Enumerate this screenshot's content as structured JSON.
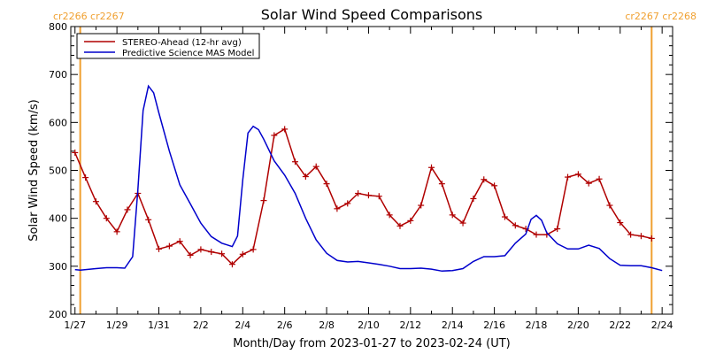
{
  "chart_data": {
    "type": "line",
    "title": "Solar Wind Speed Comparisons",
    "xlabel": "Month/Day from 2023-01-27 to 2023-02-24 (UT)",
    "ylabel": "Solar Wind Speed (km/s)",
    "ylim": [
      200,
      800
    ],
    "xlim": [
      "2023-01-27",
      "2023-02-24"
    ],
    "x_ticks": [
      "1/27",
      "1/29",
      "1/31",
      "2/2",
      "2/4",
      "2/6",
      "2/8",
      "2/10",
      "2/12",
      "2/14",
      "2/16",
      "2/18",
      "2/20",
      "2/22",
      "2/24"
    ],
    "y_ticks": [
      200,
      300,
      400,
      500,
      600,
      700,
      800
    ],
    "grid": false,
    "legend_position": "top-left",
    "series": [
      {
        "name": "STEREO-Ahead (12-hr avg)",
        "color": "#b00000",
        "marker": "plus",
        "points": [
          [
            "2023-01-27T00:00",
            537
          ],
          [
            "2023-01-27T12:00",
            485
          ],
          [
            "2023-01-28T00:00",
            435
          ],
          [
            "2023-01-28T12:00",
            400
          ],
          [
            "2023-01-29T00:00",
            372
          ],
          [
            "2023-01-29T12:00",
            418
          ],
          [
            "2023-01-30T00:00",
            452
          ],
          [
            "2023-01-30T12:00",
            397
          ],
          [
            "2023-01-31T00:00",
            336
          ],
          [
            "2023-01-31T12:00",
            342
          ],
          [
            "2023-02-01T00:00",
            352
          ],
          [
            "2023-02-01T12:00",
            323
          ],
          [
            "2023-02-02T00:00",
            335
          ],
          [
            "2023-02-02T12:00",
            330
          ],
          [
            "2023-02-03T00:00",
            326
          ],
          [
            "2023-02-03T12:00",
            304
          ],
          [
            "2023-02-04T00:00",
            325
          ],
          [
            "2023-02-04T12:00",
            335
          ],
          [
            "2023-02-05T00:00",
            437
          ],
          [
            "2023-02-05T12:00",
            573
          ],
          [
            "2023-02-06T00:00",
            586
          ],
          [
            "2023-02-06T12:00",
            518
          ],
          [
            "2023-02-07T00:00",
            487
          ],
          [
            "2023-02-07T12:00",
            508
          ],
          [
            "2023-02-08T00:00",
            472
          ],
          [
            "2023-02-08T12:00",
            420
          ],
          [
            "2023-02-09T00:00",
            431
          ],
          [
            "2023-02-09T12:00",
            452
          ],
          [
            "2023-02-10T00:00",
            448
          ],
          [
            "2023-02-10T12:00",
            446
          ],
          [
            "2023-02-11T00:00",
            407
          ],
          [
            "2023-02-11T12:00",
            384
          ],
          [
            "2023-02-12T00:00",
            395
          ],
          [
            "2023-02-12T12:00",
            427
          ],
          [
            "2023-02-13T00:00",
            506
          ],
          [
            "2023-02-13T12:00",
            472
          ],
          [
            "2023-02-14T00:00",
            407
          ],
          [
            "2023-02-14T12:00",
            390
          ],
          [
            "2023-02-15T00:00",
            441
          ],
          [
            "2023-02-15T12:00",
            481
          ],
          [
            "2023-02-16T00:00",
            468
          ],
          [
            "2023-02-16T12:00",
            403
          ],
          [
            "2023-02-17T00:00",
            385
          ],
          [
            "2023-02-17T12:00",
            378
          ],
          [
            "2023-02-18T00:00",
            366
          ],
          [
            "2023-02-18T12:00",
            366
          ],
          [
            "2023-02-19T00:00",
            378
          ],
          [
            "2023-02-19T12:00",
            486
          ],
          [
            "2023-02-20T00:00",
            492
          ],
          [
            "2023-02-20T12:00",
            473
          ],
          [
            "2023-02-21T00:00",
            482
          ],
          [
            "2023-02-21T12:00",
            427
          ],
          [
            "2023-02-22T00:00",
            391
          ],
          [
            "2023-02-22T12:00",
            366
          ],
          [
            "2023-02-23T00:00",
            363
          ],
          [
            "2023-02-23T12:00",
            358
          ]
        ]
      },
      {
        "name": "Predictive Science MAS Model",
        "color": "#0000cc",
        "marker": "none",
        "points": [
          [
            "2023-01-27T00:00",
            293
          ],
          [
            "2023-01-27T06:00",
            292
          ],
          [
            "2023-01-28T00:00",
            295
          ],
          [
            "2023-01-28T12:00",
            297
          ],
          [
            "2023-01-29T00:00",
            297
          ],
          [
            "2023-01-29T09:00",
            296
          ],
          [
            "2023-01-29T18:00",
            320
          ],
          [
            "2023-01-30T00:00",
            460
          ],
          [
            "2023-01-30T06:00",
            625
          ],
          [
            "2023-01-30T12:00",
            676
          ],
          [
            "2023-01-30T18:00",
            662
          ],
          [
            "2023-01-31T00:00",
            620
          ],
          [
            "2023-01-31T12:00",
            540
          ],
          [
            "2023-02-01T00:00",
            470
          ],
          [
            "2023-02-01T12:00",
            430
          ],
          [
            "2023-02-02T00:00",
            390
          ],
          [
            "2023-02-02T12:00",
            362
          ],
          [
            "2023-02-03T00:00",
            348
          ],
          [
            "2023-02-03T12:00",
            341
          ],
          [
            "2023-02-03T18:00",
            363
          ],
          [
            "2023-02-04T00:00",
            480
          ],
          [
            "2023-02-04T06:00",
            578
          ],
          [
            "2023-02-04T12:00",
            592
          ],
          [
            "2023-02-04T18:00",
            585
          ],
          [
            "2023-02-05T00:00",
            565
          ],
          [
            "2023-02-05T12:00",
            520
          ],
          [
            "2023-02-06T00:00",
            490
          ],
          [
            "2023-02-06T12:00",
            452
          ],
          [
            "2023-02-07T00:00",
            400
          ],
          [
            "2023-02-07T12:00",
            355
          ],
          [
            "2023-02-08T00:00",
            327
          ],
          [
            "2023-02-08T12:00",
            312
          ],
          [
            "2023-02-09T00:00",
            309
          ],
          [
            "2023-02-09T12:00",
            310
          ],
          [
            "2023-02-10T00:00",
            307
          ],
          [
            "2023-02-10T12:00",
            304
          ],
          [
            "2023-02-11T00:00",
            300
          ],
          [
            "2023-02-11T12:00",
            295
          ],
          [
            "2023-02-12T00:00",
            295
          ],
          [
            "2023-02-12T12:00",
            296
          ],
          [
            "2023-02-13T00:00",
            294
          ],
          [
            "2023-02-13T12:00",
            290
          ],
          [
            "2023-02-14T00:00",
            291
          ],
          [
            "2023-02-14T12:00",
            295
          ],
          [
            "2023-02-15T00:00",
            310
          ],
          [
            "2023-02-15T12:00",
            320
          ],
          [
            "2023-02-16T00:00",
            320
          ],
          [
            "2023-02-16T12:00",
            322
          ],
          [
            "2023-02-17T00:00",
            348
          ],
          [
            "2023-02-17T12:00",
            367
          ],
          [
            "2023-02-17T18:00",
            398
          ],
          [
            "2023-02-18T00:00",
            406
          ],
          [
            "2023-02-18T06:00",
            396
          ],
          [
            "2023-02-18T12:00",
            370
          ],
          [
            "2023-02-19T00:00",
            347
          ],
          [
            "2023-02-19T12:00",
            336
          ],
          [
            "2023-02-20T00:00",
            336
          ],
          [
            "2023-02-20T12:00",
            344
          ],
          [
            "2023-02-21T00:00",
            337
          ],
          [
            "2023-02-21T12:00",
            316
          ],
          [
            "2023-02-22T00:00",
            302
          ],
          [
            "2023-02-22T12:00",
            301
          ],
          [
            "2023-02-23T00:00",
            301
          ],
          [
            "2023-02-23T12:00",
            297
          ],
          [
            "2023-02-24T00:00",
            291
          ]
        ]
      }
    ],
    "annotations": [
      {
        "text": "cr2266 cr2267",
        "at": "2023-01-27T06:00",
        "color": "#f0a030",
        "position": "top-left"
      },
      {
        "text": "cr2267 cr2268",
        "at": "2023-02-23T12:00",
        "color": "#f0a030",
        "position": "top-right"
      }
    ],
    "vertical_lines": [
      {
        "at": "2023-01-27T06:00",
        "color": "#f0a030"
      },
      {
        "at": "2023-02-23T12:00",
        "color": "#f0a030"
      }
    ]
  }
}
